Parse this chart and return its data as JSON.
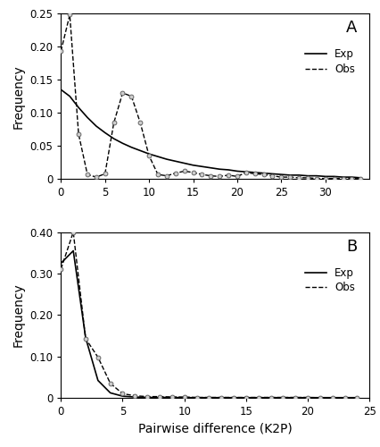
{
  "panel_A": {
    "label": "A",
    "xlim": [
      0,
      35
    ],
    "ylim": [
      0,
      0.25
    ],
    "xticks": [
      0,
      5,
      10,
      15,
      20,
      25,
      30
    ],
    "yticks": [
      0.0,
      0.05,
      0.1,
      0.15,
      0.2,
      0.25
    ],
    "ytick_labels": [
      "0",
      "0.05",
      "0.10",
      "0.15",
      "0.20",
      "0.25"
    ],
    "exp_x": [
      0,
      1,
      2,
      3,
      4,
      5,
      6,
      7,
      8,
      9,
      10,
      11,
      12,
      13,
      14,
      15,
      16,
      17,
      18,
      19,
      20,
      21,
      22,
      23,
      24,
      25,
      26,
      27,
      28,
      29,
      30,
      31,
      32,
      33,
      34
    ],
    "exp_y": [
      0.135,
      0.125,
      0.108,
      0.093,
      0.08,
      0.07,
      0.061,
      0.054,
      0.048,
      0.043,
      0.038,
      0.034,
      0.03,
      0.027,
      0.024,
      0.021,
      0.019,
      0.017,
      0.015,
      0.014,
      0.012,
      0.011,
      0.01,
      0.009,
      0.008,
      0.007,
      0.006,
      0.006,
      0.005,
      0.005,
      0.004,
      0.004,
      0.003,
      0.003,
      0.002
    ],
    "obs_x": [
      0,
      1,
      2,
      3,
      4,
      5,
      6,
      7,
      8,
      9,
      10,
      11,
      12,
      13,
      14,
      15,
      16,
      17,
      18,
      19,
      20,
      21,
      22,
      23,
      24,
      25,
      26,
      27,
      28,
      29,
      30,
      31,
      32,
      33,
      34
    ],
    "obs_y": [
      0.193,
      0.248,
      0.068,
      0.007,
      0.003,
      0.008,
      0.085,
      0.13,
      0.125,
      0.085,
      0.035,
      0.007,
      0.005,
      0.009,
      0.012,
      0.01,
      0.007,
      0.005,
      0.004,
      0.006,
      0.004,
      0.01,
      0.008,
      0.007,
      0.005,
      0.003,
      0.003,
      0.002,
      0.002,
      0.001,
      0.001,
      0.001,
      0.001,
      0.001,
      0.001
    ]
  },
  "panel_B": {
    "label": "B",
    "xlim": [
      0,
      25
    ],
    "ylim": [
      0,
      0.4
    ],
    "xticks": [
      0,
      5,
      10,
      15,
      20,
      25
    ],
    "yticks": [
      0.0,
      0.1,
      0.2,
      0.3,
      0.4
    ],
    "ytick_labels": [
      "0",
      "0.10",
      "0.20",
      "0.30",
      "0.40"
    ],
    "exp_x": [
      0,
      1,
      2,
      3,
      4,
      5,
      6,
      7,
      8,
      9,
      10,
      11,
      12,
      13,
      14,
      15,
      16,
      17,
      18,
      19,
      20,
      21,
      22,
      23,
      24
    ],
    "exp_y": [
      0.325,
      0.355,
      0.145,
      0.042,
      0.012,
      0.004,
      0.002,
      0.001,
      0.001,
      0.001,
      0.0005,
      0.0005,
      0.0005,
      0.0005,
      0.0005,
      0.0005,
      0.0005,
      0.0005,
      0.0005,
      0.0005,
      0.0005,
      0.0005,
      0.0005,
      0.0005,
      0.0005
    ],
    "obs_x": [
      0,
      1,
      2,
      3,
      4,
      5,
      6,
      7,
      8,
      9,
      10,
      11,
      12,
      13,
      14,
      15,
      16,
      17,
      18,
      19,
      20,
      21,
      22,
      23,
      24
    ],
    "obs_y": [
      0.311,
      0.4,
      0.143,
      0.098,
      0.035,
      0.01,
      0.005,
      0.003,
      0.003,
      0.002,
      0.002,
      0.001,
      0.001,
      0.001,
      0.001,
      0.001,
      0.001,
      0.001,
      0.001,
      0.001,
      0.001,
      0.0005,
      0.0005,
      0.0005,
      0.0005
    ]
  },
  "ylabel": "Frequency",
  "xlabel": "Pairwise difference (K2P)",
  "line_color": "#000000",
  "marker_facecolor": "#cccccc",
  "marker_edgecolor": "#555555",
  "marker_size": 3.5,
  "legend_fontsize": 8.5,
  "tick_fontsize": 8.5,
  "label_fontsize": 10
}
